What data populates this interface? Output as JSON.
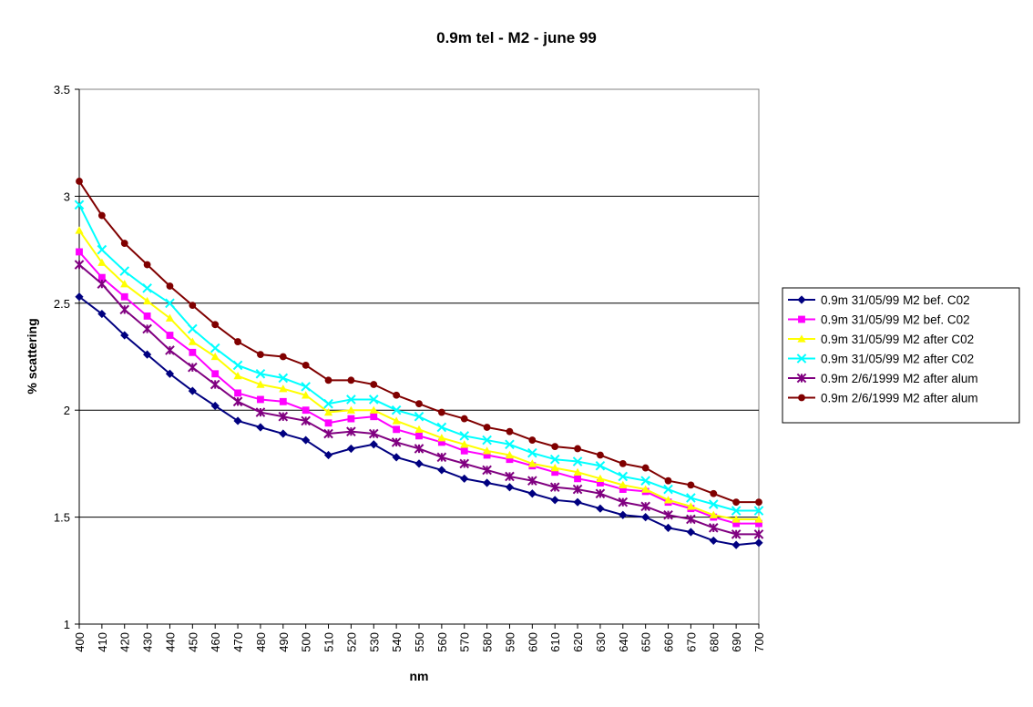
{
  "chart_data": {
    "type": "line",
    "title": "0.9m tel - M2 - june 99",
    "xlabel": "nm",
    "ylabel": "% scattering",
    "ylim": [
      1,
      3.5
    ],
    "yticks": [
      "1",
      "1.5",
      "2",
      "2.5",
      "3",
      "3.5"
    ],
    "grid": "horizontal",
    "legend": "right",
    "x": [
      400,
      410,
      420,
      430,
      440,
      450,
      460,
      470,
      480,
      490,
      500,
      510,
      520,
      530,
      540,
      550,
      560,
      570,
      580,
      590,
      600,
      610,
      620,
      630,
      640,
      650,
      660,
      670,
      680,
      690,
      700
    ],
    "series": [
      {
        "name": "0.9m 31/05/99 M2  bef. C02",
        "color": "#000080",
        "marker": "diamond",
        "values": [
          2.53,
          2.45,
          2.35,
          2.26,
          2.17,
          2.09,
          2.02,
          1.95,
          1.92,
          1.89,
          1.86,
          1.79,
          1.82,
          1.84,
          1.78,
          1.75,
          1.72,
          1.68,
          1.66,
          1.64,
          1.61,
          1.58,
          1.57,
          1.54,
          1.51,
          1.5,
          1.45,
          1.43,
          1.39,
          1.37,
          1.38
        ]
      },
      {
        "name": "0.9m 31/05/99 M2  bef. C02",
        "color": "#ff00ff",
        "marker": "square",
        "values": [
          2.74,
          2.62,
          2.53,
          2.44,
          2.35,
          2.27,
          2.17,
          2.08,
          2.05,
          2.04,
          2.0,
          1.94,
          1.96,
          1.97,
          1.91,
          1.88,
          1.85,
          1.81,
          1.79,
          1.77,
          1.74,
          1.71,
          1.68,
          1.66,
          1.63,
          1.62,
          1.57,
          1.54,
          1.5,
          1.47,
          1.47
        ]
      },
      {
        "name": "0.9m 31/05/99 M2  after C02",
        "color": "#ffff00",
        "marker": "triangle",
        "values": [
          2.84,
          2.69,
          2.59,
          2.51,
          2.43,
          2.32,
          2.25,
          2.16,
          2.12,
          2.1,
          2.07,
          1.99,
          2.0,
          2.0,
          1.95,
          1.91,
          1.87,
          1.84,
          1.81,
          1.79,
          1.75,
          1.73,
          1.71,
          1.68,
          1.65,
          1.63,
          1.58,
          1.55,
          1.51,
          1.49,
          1.49
        ]
      },
      {
        "name": "0.9m 31/05/99 M2  after C02",
        "color": "#00ffff",
        "marker": "x",
        "values": [
          2.96,
          2.75,
          2.65,
          2.57,
          2.5,
          2.38,
          2.29,
          2.21,
          2.17,
          2.15,
          2.11,
          2.03,
          2.05,
          2.05,
          2.0,
          1.97,
          1.92,
          1.88,
          1.86,
          1.84,
          1.8,
          1.77,
          1.76,
          1.74,
          1.69,
          1.67,
          1.63,
          1.59,
          1.56,
          1.53,
          1.53
        ]
      },
      {
        "name": "0.9m 2/6/1999 M2 after alum",
        "color": "#800080",
        "marker": "star",
        "values": [
          2.68,
          2.59,
          2.47,
          2.38,
          2.28,
          2.2,
          2.12,
          2.04,
          1.99,
          1.97,
          1.95,
          1.89,
          1.9,
          1.89,
          1.85,
          1.82,
          1.78,
          1.75,
          1.72,
          1.69,
          1.67,
          1.64,
          1.63,
          1.61,
          1.57,
          1.55,
          1.51,
          1.49,
          1.45,
          1.42,
          1.42
        ]
      },
      {
        "name": "0.9m 2/6/1999 M2 after alum",
        "color": "#800000",
        "marker": "circle",
        "values": [
          3.07,
          2.91,
          2.78,
          2.68,
          2.58,
          2.49,
          2.4,
          2.32,
          2.26,
          2.25,
          2.21,
          2.14,
          2.14,
          2.12,
          2.07,
          2.03,
          1.99,
          1.96,
          1.92,
          1.9,
          1.86,
          1.83,
          1.82,
          1.79,
          1.75,
          1.73,
          1.67,
          1.65,
          1.61,
          1.57,
          1.57
        ]
      }
    ]
  }
}
